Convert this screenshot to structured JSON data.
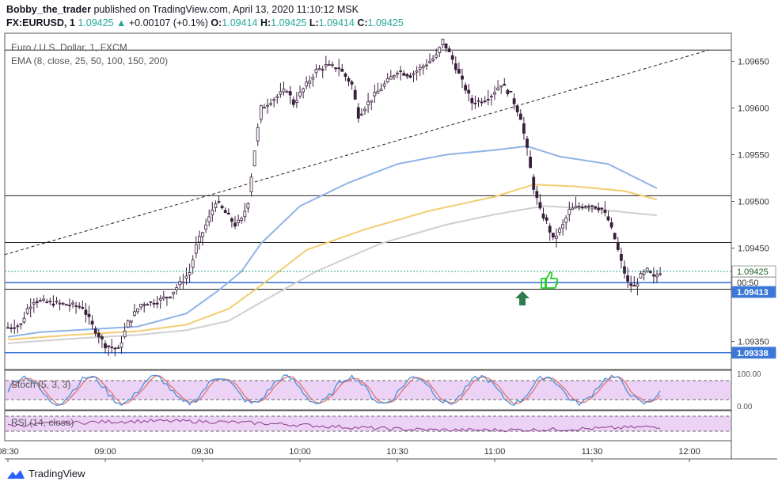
{
  "header": {
    "author": "Bobby_the_trader",
    "published_text": "published on TradingView.com, April 13, 2020 11:10:12 MSK",
    "symbol": "FX:EURUSD, 1",
    "last": "1.09425",
    "change_arrow": "▲",
    "change": "+0.00107 (+0.1%)",
    "o_label": "O:",
    "o": "1.09414",
    "h_label": "H:",
    "h": "1.09425",
    "l_label": "L:",
    "l": "1.09414",
    "c_label": "C:",
    "c": "1.09425"
  },
  "legend": {
    "title": "Euro / U.S. Dollar, 1, FXCM",
    "ema": "EMA (8, close, 25, 50, 100, 150, 200)",
    "stoch": "Stoch (5, 3, 3)",
    "rsi": "RSI (14, close)"
  },
  "brand": {
    "name": "TradingView",
    "icon": "tradingview-logo-icon"
  },
  "colors": {
    "up": "#26a69a",
    "candle": "#3a1f3d",
    "ema_blue": "#8fb3e6",
    "ema_yellow": "#f2cc70",
    "ema_gray": "#cfcfcf",
    "hline_blue": "#3c78d8",
    "stoch_k": "#4a90d9",
    "stoch_d": "#e57373",
    "rsi": "#8e3a8e",
    "band": "#e9cff2"
  },
  "chart_data": {
    "type": "candlestick",
    "title": "Euro / U.S. Dollar, 1, FXCM",
    "time_ticks": [
      "08:30",
      "09:00",
      "09:30",
      "10:00",
      "10:30",
      "11:00",
      "11:30",
      "12:00"
    ],
    "price_ticks": [
      "1.09650",
      "1.09600",
      "1.09550",
      "1.09500",
      "1.09450",
      "1.09350"
    ],
    "price_range": [
      1.0932,
      1.0968
    ],
    "price_labels": [
      {
        "text": "1.09425",
        "price": 1.09425,
        "style": "current"
      },
      {
        "text": "00:50",
        "price": 1.09413,
        "style": "timer"
      },
      {
        "text": "1.09413",
        "price": 1.09403,
        "style": "blue"
      },
      {
        "text": "1.09338",
        "price": 1.09338,
        "style": "blue"
      }
    ],
    "horizontal_lines": [
      {
        "price": 1.09662,
        "color": "black"
      },
      {
        "price": 1.09506,
        "color": "black"
      },
      {
        "price": 1.09456,
        "color": "black"
      },
      {
        "price": 1.09413,
        "color": "blue"
      },
      {
        "price": 1.09406,
        "color": "black"
      },
      {
        "price": 1.09338,
        "color": "blue"
      }
    ],
    "trendline": {
      "from": [
        "08:29",
        1.09443
      ],
      "to": [
        "12:06",
        1.09662
      ],
      "style": "dashed"
    },
    "stoch": {
      "axis_ticks": [
        "100.00",
        "0.00"
      ],
      "band": [
        80,
        20
      ]
    },
    "rsi": {
      "band": [
        70,
        30
      ]
    }
  }
}
